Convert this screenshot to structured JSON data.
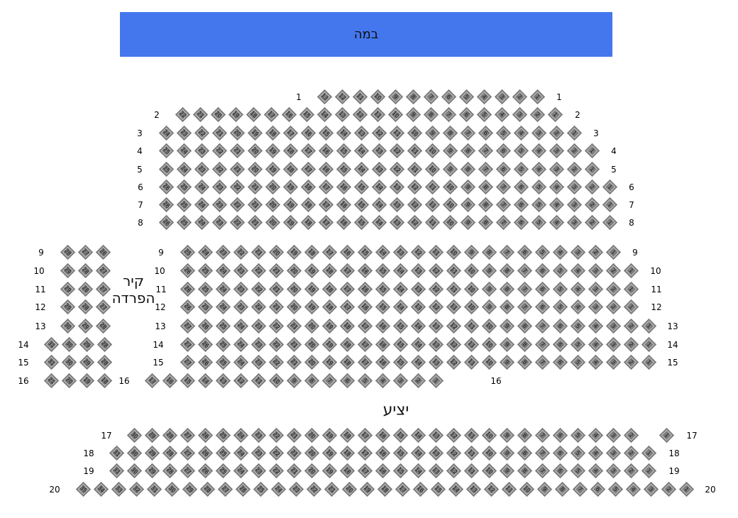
{
  "stage": {
    "label": "במה",
    "color": "#4477EE"
  },
  "wall_label": "קיר הפרדה",
  "balcony_label": "יציע",
  "seat_color": "#7D7D7D",
  "rows": [
    {
      "row": "1",
      "seats": [
        13,
        12,
        11,
        10,
        9,
        8,
        7,
        6,
        5,
        4,
        3,
        2,
        1
      ]
    },
    {
      "row": "2",
      "seats": [
        22,
        21,
        20,
        19,
        18,
        17,
        16,
        15,
        14,
        13,
        12,
        11,
        10,
        9,
        8,
        7,
        6,
        5,
        4,
        3,
        2,
        1
      ]
    },
    {
      "row": "3",
      "seats": [
        24,
        23,
        22,
        21,
        20,
        19,
        18,
        17,
        16,
        15,
        14,
        13,
        12,
        11,
        10,
        9,
        8,
        7,
        6,
        5,
        4,
        3,
        2,
        1
      ]
    },
    {
      "row": "4",
      "seats": [
        25,
        24,
        23,
        22,
        21,
        20,
        19,
        18,
        17,
        16,
        15,
        14,
        13,
        12,
        11,
        10,
        9,
        8,
        7,
        6,
        5,
        4,
        3,
        2,
        1
      ]
    },
    {
      "row": "5",
      "seats": [
        25,
        24,
        23,
        22,
        21,
        20,
        19,
        18,
        17,
        16,
        15,
        14,
        13,
        12,
        11,
        10,
        9,
        8,
        7,
        6,
        5,
        4,
        3,
        2,
        1
      ]
    },
    {
      "row": "6",
      "seats": [
        26,
        25,
        24,
        23,
        22,
        21,
        20,
        19,
        18,
        17,
        16,
        15,
        14,
        13,
        12,
        11,
        10,
        9,
        8,
        7,
        6,
        5,
        4,
        3,
        2,
        1
      ]
    },
    {
      "row": "7",
      "seats": [
        26,
        25,
        24,
        23,
        22,
        21,
        20,
        19,
        18,
        17,
        16,
        15,
        14,
        13,
        12,
        11,
        10,
        9,
        8,
        7,
        6,
        5,
        4,
        3,
        2,
        1
      ]
    },
    {
      "row": "8",
      "seats": [
        26,
        25,
        24,
        23,
        22,
        21,
        20,
        19,
        18,
        17,
        16,
        15,
        14,
        13,
        12,
        11,
        10,
        9,
        8,
        7,
        6,
        5,
        4,
        3,
        2,
        1
      ]
    },
    {
      "row": "9",
      "seats": [
        25,
        24,
        23,
        22,
        21,
        20,
        19,
        18,
        17,
        16,
        15,
        14,
        13,
        12,
        11,
        10,
        9,
        8,
        7,
        6,
        5,
        4,
        3,
        2,
        1
      ],
      "side_seats": [
        28,
        27,
        26
      ]
    },
    {
      "row": "10",
      "seats": [
        26,
        25,
        24,
        23,
        22,
        21,
        20,
        19,
        18,
        17,
        16,
        15,
        14,
        13,
        12,
        11,
        10,
        9,
        8,
        7,
        6,
        5,
        4,
        3,
        2,
        1
      ],
      "side_seats": [
        29,
        28,
        27
      ]
    },
    {
      "row": "11",
      "seats": [
        26,
        25,
        24,
        23,
        22,
        21,
        20,
        19,
        18,
        17,
        16,
        15,
        14,
        13,
        12,
        11,
        10,
        9,
        8,
        7,
        6,
        5,
        4,
        3,
        2,
        1
      ],
      "side_seats": [
        29,
        28,
        27
      ]
    },
    {
      "row": "12",
      "seats": [
        26,
        25,
        24,
        23,
        22,
        21,
        20,
        19,
        18,
        17,
        16,
        15,
        14,
        13,
        12,
        11,
        10,
        9,
        8,
        7,
        6,
        5,
        4,
        3,
        2,
        1
      ],
      "side_seats": [
        29,
        28,
        27
      ]
    },
    {
      "row": "13",
      "seats": [
        27,
        26,
        25,
        24,
        23,
        22,
        21,
        20,
        19,
        18,
        17,
        16,
        15,
        14,
        13,
        12,
        11,
        10,
        9,
        8,
        7,
        6,
        5,
        4,
        3,
        2,
        1
      ],
      "side_seats": [
        30,
        29,
        28
      ]
    },
    {
      "row": "14",
      "seats": [
        27,
        26,
        25,
        24,
        23,
        22,
        21,
        20,
        19,
        18,
        17,
        16,
        15,
        14,
        13,
        12,
        11,
        10,
        9,
        8,
        7,
        6,
        5,
        4,
        3,
        2,
        1
      ],
      "side_seats": [
        31,
        30,
        29,
        28
      ]
    },
    {
      "row": "15",
      "seats": [
        27,
        26,
        25,
        24,
        23,
        22,
        21,
        20,
        19,
        18,
        17,
        16,
        15,
        14,
        13,
        12,
        11,
        10,
        9,
        8,
        7,
        6,
        5,
        4,
        3,
        2,
        1
      ],
      "side_seats": [
        31,
        30,
        29,
        28
      ]
    },
    {
      "row": "16",
      "seats": [
        17,
        16,
        15,
        14,
        13,
        12,
        11,
        10,
        9,
        8,
        7,
        6,
        5,
        4,
        3,
        2,
        1
      ],
      "side_seats": [
        21,
        20,
        19,
        18
      ]
    },
    {
      "row": "17",
      "seats": [
        30,
        29,
        28,
        27,
        26,
        25,
        24,
        23,
        22,
        21,
        20,
        19,
        18,
        17,
        16,
        15,
        14,
        13,
        12,
        11,
        10,
        9,
        8,
        7,
        6,
        5,
        4,
        3,
        2,
        1
      ]
    },
    {
      "row": "18",
      "seats": [
        31,
        30,
        29,
        28,
        27,
        26,
        25,
        24,
        23,
        22,
        21,
        20,
        19,
        18,
        17,
        16,
        15,
        14,
        13,
        12,
        11,
        10,
        9,
        8,
        7,
        6,
        5,
        4,
        3,
        2,
        1
      ]
    },
    {
      "row": "19",
      "seats": [
        31,
        30,
        29,
        28,
        27,
        26,
        25,
        24,
        23,
        22,
        21,
        20,
        19,
        18,
        17,
        16,
        15,
        14,
        13,
        12,
        11,
        10,
        9,
        8,
        7,
        6,
        5,
        4,
        3,
        2,
        1
      ]
    },
    {
      "row": "20",
      "seats": [
        35,
        34,
        33,
        32,
        31,
        30,
        29,
        28,
        27,
        26,
        25,
        24,
        23,
        22,
        21,
        20,
        19,
        18,
        17,
        16,
        15,
        14,
        13,
        12,
        11,
        10,
        9,
        8,
        7,
        6,
        5,
        4,
        3,
        2,
        1
      ]
    }
  ]
}
